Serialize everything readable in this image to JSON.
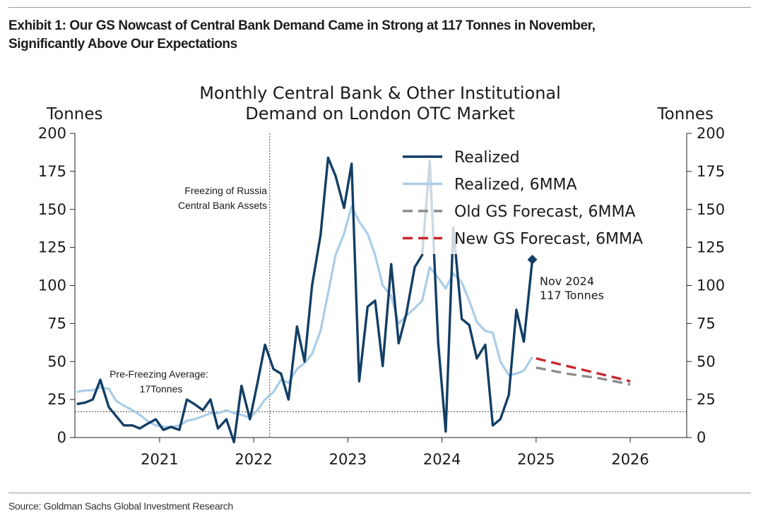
{
  "exhibit": {
    "title_line1": "Exhibit 1: Our GS Nowcast of Central Bank Demand Came in Strong at 117 Tonnes in November,",
    "title_line2": "Significantly Above Our Expectations",
    "source": "Source: Goldman Sachs Global Investment Research"
  },
  "chart_data": {
    "type": "line",
    "title_line1": "Monthly Central Bank & Other Institutional",
    "title_line2": "Demand on London OTC Market",
    "ylabel_left": "Tonnes",
    "ylabel_right": "Tonnes",
    "ylim": [
      0,
      200
    ],
    "yticks": [
      0,
      25,
      50,
      75,
      100,
      125,
      150,
      175,
      200
    ],
    "xlim": [
      2020.1,
      2026.6
    ],
    "xticks": [
      2021,
      2022,
      2023,
      2024,
      2025,
      2026
    ],
    "xtick_labels": [
      "2021",
      "2022",
      "2023",
      "2024",
      "2025",
      "2026"
    ],
    "colors": {
      "realized": "#123e64",
      "realized_6mma": "#a9cde8",
      "old_forecast": "#8c8c8c",
      "new_forecast": "#c8262b"
    },
    "series": [
      {
        "name": "Realized",
        "key": "realized",
        "style": "solid",
        "points": [
          [
            2020.12,
            22
          ],
          [
            2020.21,
            23
          ],
          [
            2020.29,
            25
          ],
          [
            2020.37,
            38
          ],
          [
            2020.46,
            20
          ],
          [
            2020.54,
            14
          ],
          [
            2020.62,
            8
          ],
          [
            2020.71,
            8
          ],
          [
            2020.79,
            6
          ],
          [
            2020.87,
            9
          ],
          [
            2020.96,
            12
          ],
          [
            2021.04,
            5
          ],
          [
            2021.12,
            7
          ],
          [
            2021.21,
            5
          ],
          [
            2021.29,
            25
          ],
          [
            2021.37,
            22
          ],
          [
            2021.46,
            18
          ],
          [
            2021.54,
            25
          ],
          [
            2021.62,
            6
          ],
          [
            2021.71,
            12
          ],
          [
            2021.79,
            -3
          ],
          [
            2021.87,
            34
          ],
          [
            2021.96,
            12
          ],
          [
            2022.04,
            36
          ],
          [
            2022.12,
            61
          ],
          [
            2022.21,
            45
          ],
          [
            2022.29,
            42
          ],
          [
            2022.37,
            25
          ],
          [
            2022.46,
            73
          ],
          [
            2022.54,
            50
          ],
          [
            2022.62,
            100
          ],
          [
            2022.71,
            133
          ],
          [
            2022.79,
            184
          ],
          [
            2022.87,
            172
          ],
          [
            2022.96,
            151
          ],
          [
            2023.04,
            180
          ],
          [
            2023.12,
            37
          ],
          [
            2023.21,
            86
          ],
          [
            2023.29,
            90
          ],
          [
            2023.37,
            47
          ],
          [
            2023.46,
            114
          ],
          [
            2023.54,
            62
          ],
          [
            2023.62,
            81
          ],
          [
            2023.71,
            112
          ],
          [
            2023.79,
            120
          ],
          [
            2023.87,
            182
          ],
          [
            2023.96,
            62
          ],
          [
            2024.04,
            4
          ],
          [
            2024.12,
            138
          ],
          [
            2024.21,
            78
          ],
          [
            2024.29,
            74
          ],
          [
            2024.37,
            52
          ],
          [
            2024.46,
            61
          ],
          [
            2024.54,
            8
          ],
          [
            2024.62,
            12
          ],
          [
            2024.71,
            28
          ],
          [
            2024.79,
            84
          ],
          [
            2024.87,
            63
          ],
          [
            2024.96,
            117
          ]
        ]
      },
      {
        "name": "Realized, 6MMA",
        "key": "realized_6mma",
        "style": "solid",
        "points": [
          [
            2020.12,
            30
          ],
          [
            2020.21,
            31
          ],
          [
            2020.29,
            31
          ],
          [
            2020.37,
            33
          ],
          [
            2020.46,
            32
          ],
          [
            2020.54,
            24
          ],
          [
            2020.62,
            21
          ],
          [
            2020.71,
            18
          ],
          [
            2020.79,
            15
          ],
          [
            2020.87,
            11
          ],
          [
            2020.96,
            8
          ],
          [
            2021.04,
            7
          ],
          [
            2021.12,
            7
          ],
          [
            2021.21,
            8
          ],
          [
            2021.29,
            11
          ],
          [
            2021.37,
            12
          ],
          [
            2021.46,
            14
          ],
          [
            2021.54,
            16
          ],
          [
            2021.62,
            16
          ],
          [
            2021.71,
            18
          ],
          [
            2021.79,
            16
          ],
          [
            2021.87,
            15
          ],
          [
            2021.96,
            13
          ],
          [
            2022.04,
            18
          ],
          [
            2022.12,
            25
          ],
          [
            2022.21,
            30
          ],
          [
            2022.29,
            38
          ],
          [
            2022.37,
            36
          ],
          [
            2022.46,
            45
          ],
          [
            2022.54,
            49
          ],
          [
            2022.62,
            55
          ],
          [
            2022.71,
            70
          ],
          [
            2022.79,
            95
          ],
          [
            2022.87,
            120
          ],
          [
            2022.96,
            134
          ],
          [
            2023.04,
            152
          ],
          [
            2023.12,
            142
          ],
          [
            2023.21,
            134
          ],
          [
            2023.29,
            120
          ],
          [
            2023.37,
            100
          ],
          [
            2023.46,
            93
          ],
          [
            2023.54,
            75
          ],
          [
            2023.62,
            80
          ],
          [
            2023.71,
            85
          ],
          [
            2023.79,
            90
          ],
          [
            2023.87,
            112
          ],
          [
            2023.96,
            105
          ],
          [
            2024.04,
            98
          ],
          [
            2024.12,
            108
          ],
          [
            2024.21,
            102
          ],
          [
            2024.29,
            90
          ],
          [
            2024.37,
            76
          ],
          [
            2024.46,
            70
          ],
          [
            2024.54,
            69
          ],
          [
            2024.62,
            50
          ],
          [
            2024.71,
            41
          ],
          [
            2024.79,
            42
          ],
          [
            2024.87,
            44
          ],
          [
            2024.96,
            53
          ]
        ]
      },
      {
        "name": "Old GS Forecast, 6MMA",
        "key": "old_forecast",
        "style": "dashed",
        "points": [
          [
            2025.0,
            46
          ],
          [
            2025.33,
            42
          ],
          [
            2025.67,
            39
          ],
          [
            2026.0,
            35
          ]
        ]
      },
      {
        "name": "New GS Forecast, 6MMA",
        "key": "new_forecast",
        "style": "dashed",
        "points": [
          [
            2025.0,
            52
          ],
          [
            2025.33,
            47
          ],
          [
            2025.67,
            42
          ],
          [
            2026.0,
            37
          ]
        ]
      }
    ],
    "reference_line": {
      "value": 17,
      "label_line1": "Pre-Freezing Average:",
      "label_line2": "17Tonnes"
    },
    "event_line": {
      "x": 2022.17,
      "label_line1": "Freezing of Russia",
      "label_line2": "Central Bank Assets"
    },
    "highlight": {
      "x": 2024.96,
      "y": 117,
      "label_line1": "Nov 2024",
      "label_line2": "117 Tonnes"
    },
    "legend_position": "top-right"
  }
}
